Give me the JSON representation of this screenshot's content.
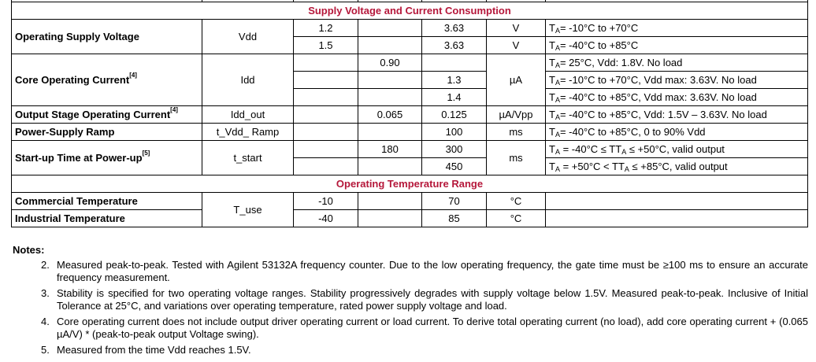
{
  "sections": [
    {
      "title": "Supply Voltage and Current Consumption",
      "rows": [
        {
          "param": "Operating Supply Voltage",
          "sup": "",
          "symbol": "Vdd",
          "sub": [
            {
              "min": "1.2",
              "typ": "",
              "max": "3.63",
              "unit": "V",
              "cond": "= -10°C to +70°C"
            },
            {
              "min": "1.5",
              "typ": "",
              "max": "3.63",
              "unit": "V",
              "cond": "= -40°C to +85°C"
            }
          ]
        },
        {
          "param": "Core Operating Current",
          "sup": "[4]",
          "symbol": "Idd",
          "unit": "µA",
          "sub": [
            {
              "min": "",
              "typ": "0.90",
              "max": "",
              "cond": "= 25°C, Vdd: 1.8V. No load"
            },
            {
              "min": "",
              "typ": "",
              "max": "1.3",
              "cond": "= -10°C to +70°C, Vdd max: 3.63V. No load"
            },
            {
              "min": "",
              "typ": "",
              "max": "1.4",
              "cond": "= -40°C to +85°C, Vdd max: 3.63V. No load"
            }
          ]
        },
        {
          "param": "Output Stage Operating Current",
          "sup": "[4]",
          "symbol": "Idd_out",
          "min": "",
          "typ": "0.065",
          "max": "0.125",
          "unit": "µA/Vpp",
          "cond": "= -40°C to +85°C, Vdd: 1.5V – 3.63V. No load"
        },
        {
          "param": "Power-Supply Ramp",
          "sup": "",
          "symbol": "t_Vdd_ Ramp",
          "min": "",
          "typ": "",
          "max": "100",
          "unit": "ms",
          "cond": "= -40°C to +85°C, 0 to 90% Vdd"
        },
        {
          "param": "Start-up Time at Power-up",
          "sup": "[5]",
          "symbol": "t_start",
          "unit": "ms",
          "sub": [
            {
              "min": "",
              "typ": "180",
              "max": "300",
              "cond_a": " = -40°C ≤ T",
              "cond_b": " ≤ +50°C, valid output"
            },
            {
              "min": "",
              "typ": "",
              "max": "450",
              "cond_a": " = +50°C < T",
              "cond_b": " ≤ +85°C, valid output"
            }
          ]
        }
      ]
    },
    {
      "title": "Operating Temperature Range",
      "symbol": "T_use",
      "rows": [
        {
          "param": "Commercial Temperature",
          "min": "-10",
          "typ": "",
          "max": "70",
          "unit": "°C",
          "cond": ""
        },
        {
          "param": "Industrial Temperature",
          "min": "-40",
          "typ": "",
          "max": "85",
          "unit": "°C",
          "cond": ""
        }
      ]
    }
  ],
  "ta_label": "T",
  "ta_sub": "A",
  "notes": {
    "heading": "Notes:",
    "items": [
      {
        "num": "2.",
        "text": "Measured peak-to-peak. Tested with Agilent 53132A frequency counter. Due to the low operating frequency, the gate time must be ≥100 ms to ensure an accurate frequency measurement."
      },
      {
        "num": "3.",
        "text": "Stability is specified for two operating voltage ranges. Stability progressively degrades with supply voltage below 1.5V. Measured peak-to-peak. Inclusive of Initial Tolerance at 25°C, and variations over operating temperature, rated power supply voltage and load."
      },
      {
        "num": "4.",
        "text": "Core operating current does not include output driver operating current or load current. To derive total operating current (no load), add core operating current + (0.065 µA/V) * (peak-to-peak output Voltage swing)."
      },
      {
        "num": "5.",
        "text": "Measured from the time Vdd reaches 1.5V."
      }
    ]
  }
}
